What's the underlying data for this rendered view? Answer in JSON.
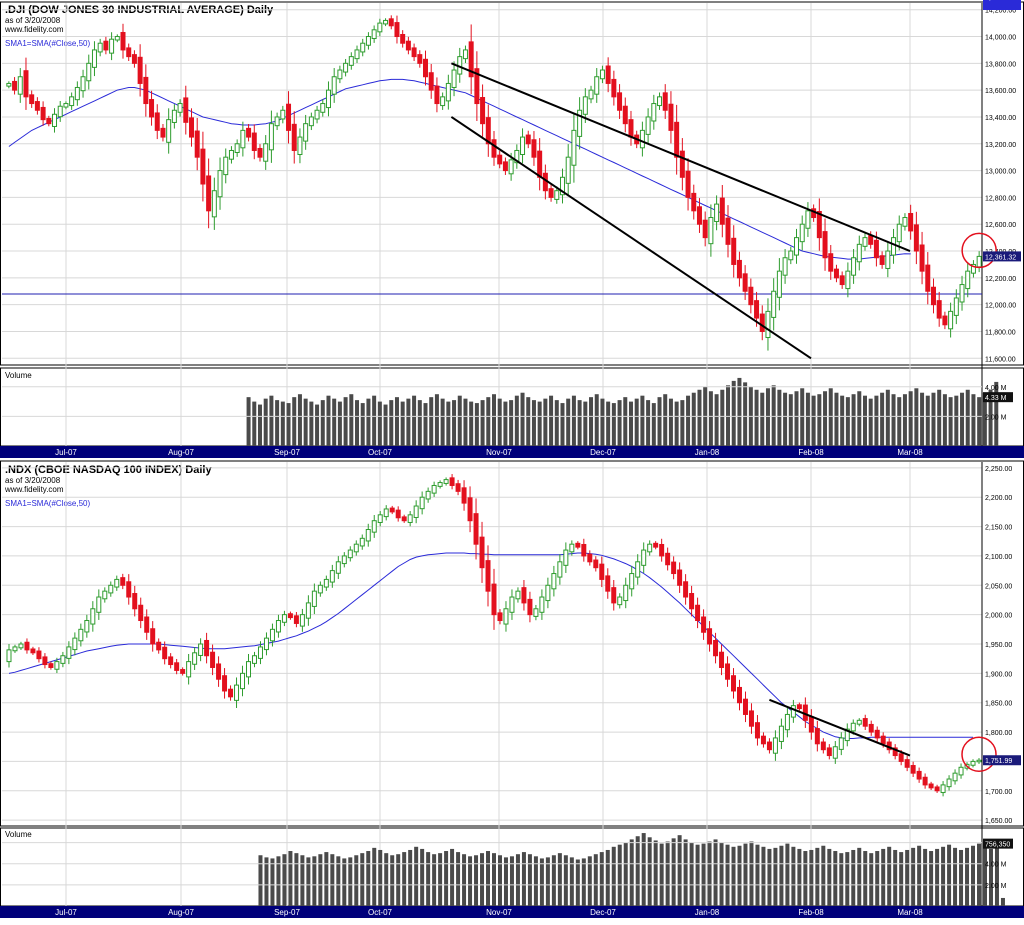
{
  "colors": {
    "up": "#2e9c2e",
    "down": "#e3101e",
    "sma": "#2a2ad8",
    "volume": "#4a4a4a",
    "axis_band": "#00007a",
    "grid": "#d8d8d8",
    "trendline": "#000000",
    "circle": "#e3101e",
    "hline": "#1f1fb0"
  },
  "x_axis_labels": [
    "Jul-07",
    "Aug-07",
    "Sep-07",
    "Oct-07",
    "Nov-07",
    "Dec-07",
    "Jan-08",
    "Feb-08",
    "Mar-08"
  ],
  "chart_data": [
    {
      "type": "candlestick",
      "title": ".DJI (DOW JONES 30 INDUSTRIAL AVERAGE) Daily",
      "subtitle_date": "as of 3/20/2008",
      "source": "www.fidelity.com",
      "legend": "SMA1=SMA(#Close,50)",
      "volume_label": "Volume",
      "y_ticks": [
        "14,200.00",
        "14,000.00",
        "13,800.00",
        "13,600.00",
        "13,400.00",
        "13,200.00",
        "13,000.00",
        "12,800.00",
        "12,600.00",
        "12,400.00",
        "12,200.00",
        "12,000.00",
        "11,800.00",
        "11,600.00"
      ],
      "ylim": [
        11550,
        14250
      ],
      "last_price_label": "12,361.32",
      "sma_label": "12,379.04",
      "volume_ticks": [
        "4.00 M",
        "2.00 M"
      ],
      "volume_last_label": "4.33 M",
      "horizontal_line": 12080,
      "trendlines": [
        {
          "from": [
            "Oct-07 end",
            13800
          ],
          "to": [
            "Mar-08 end",
            12400
          ]
        },
        {
          "from": [
            "Oct-07 end",
            13400
          ],
          "to": [
            "Feb-08 start",
            11600
          ]
        }
      ],
      "closes": [
        13650,
        13600,
        13700,
        13550,
        13500,
        13450,
        13380,
        13350,
        13420,
        13480,
        13500,
        13550,
        13620,
        13700,
        13800,
        13900,
        13950,
        13900,
        13980,
        14000,
        13900,
        13850,
        13800,
        13650,
        13500,
        13400,
        13300,
        13250,
        13380,
        13450,
        13500,
        13360,
        13250,
        13100,
        12900,
        12700,
        12850,
        13000,
        13100,
        13150,
        13200,
        13300,
        13250,
        13150,
        13100,
        13200,
        13350,
        13400,
        13450,
        13300,
        13150,
        13250,
        13350,
        13400,
        13450,
        13500,
        13600,
        13700,
        13750,
        13800,
        13850,
        13900,
        13950,
        14000,
        14050,
        14100,
        14120,
        14080,
        14000,
        13950,
        13900,
        13850,
        13800,
        13700,
        13600,
        13500,
        13550,
        13650,
        13750,
        13850,
        13900,
        13700,
        13500,
        13350,
        13200,
        13100,
        13050,
        13000,
        13080,
        13150,
        13250,
        13200,
        13100,
        12950,
        12850,
        12800,
        12850,
        12950,
        13100,
        13300,
        13450,
        13550,
        13600,
        13700,
        13750,
        13650,
        13550,
        13450,
        13350,
        13250,
        13200,
        13300,
        13400,
        13500,
        13550,
        13450,
        13300,
        13100,
        12950,
        12800,
        12700,
        12600,
        12500,
        12650,
        12750,
        12600,
        12450,
        12300,
        12200,
        12100,
        12000,
        11900,
        11800,
        11950,
        12100,
        12250,
        12350,
        12400,
        12500,
        12600,
        12700,
        12650,
        12500,
        12350,
        12250,
        12200,
        12150,
        12250,
        12350,
        12450,
        12500,
        12450,
        12350,
        12300,
        12400,
        12500,
        12600,
        12650,
        12550,
        12400,
        12250,
        12100,
        12000,
        11900,
        11850,
        11950,
        12050,
        12150,
        12250,
        12300,
        12360
      ],
      "volumes": [
        3.2,
        3.5,
        3.0,
        2.8,
        3.1,
        3.3,
        2.9,
        3.0,
        3.4,
        3.2,
        2.7,
        3.1,
        3.3,
        3.5,
        3.0,
        3.2,
        3.4,
        3.1,
        3.0,
        2.9,
        3.2,
        3.3,
        3.6,
        3.8,
        3.5,
        3.2,
        3.9,
        4.2,
        3.7,
        3.4,
        3.1,
        2.9,
        3.3,
        3.5,
        3.2,
        3.0,
        3.1,
        3.4,
        3.2,
        3.0,
        2.9,
        3.1,
        3.3,
        3.0,
        2.8,
        3.2,
        3.4,
        3.1,
        3.0,
        2.9,
        3.3,
        3.5,
        3.2,
        3.0,
        2.8,
        3.1,
        3.4,
        3.2,
        3.0,
        3.3,
        3.5,
        3.1,
        2.9,
        3.2,
        3.4,
        3.0,
        2.8,
        3.1,
        3.3,
        3.0,
        3.2,
        3.4,
        3.1,
        2.9,
        3.3,
        3.5,
        3.2,
        3.0,
        3.1,
        3.4,
        3.2,
        3.0,
        2.9,
        3.1,
        3.3,
        3.5,
        3.2,
        3.0,
        3.1,
        3.4,
        3.6,
        3.3,
        3.1,
        3.0,
        3.2,
        3.4,
        3.1,
        2.9,
        3.2,
        3.4,
        3.1,
        3.0,
        3.3,
        3.5,
        3.2,
        3.0,
        2.9,
        3.1,
        3.3,
        3.0,
        3.2,
        3.4,
        3.1,
        2.9,
        3.3,
        3.5,
        3.2,
        3.0,
        3.1,
        3.4,
        3.6,
        3.8,
        4.0,
        3.7,
        3.5,
        3.8,
        4.1,
        4.4,
        4.6,
        4.3,
        4.0,
        3.8,
        3.6,
        3.9,
        4.1,
        3.8,
        3.6,
        3.5,
        3.7,
        3.9,
        3.6,
        3.4,
        3.5,
        3.7,
        3.9,
        3.6,
        3.4,
        3.3,
        3.5,
        3.7,
        3.4,
        3.2,
        3.4,
        3.6,
        3.8,
        3.5,
        3.3,
        3.5,
        3.7,
        3.9,
        3.6,
        3.4,
        3.6,
        3.8,
        3.5,
        3.3,
        3.4,
        3.6,
        3.8,
        3.5,
        3.3,
        3.6,
        3.8,
        4.33
      ],
      "sma_values": [
        13180,
        13210,
        13240,
        13270,
        13300,
        13320,
        13340,
        13360,
        13380,
        13400,
        13420,
        13440,
        13460,
        13480,
        13500,
        13520,
        13540,
        13560,
        13580,
        13600,
        13610,
        13620,
        13620,
        13610,
        13600,
        13580,
        13560,
        13540,
        13520,
        13500,
        13480,
        13460,
        13440,
        13420,
        13400,
        13390,
        13380,
        13370,
        13360,
        13350,
        13345,
        13340,
        13340,
        13340,
        13345,
        13350,
        13360,
        13370,
        13390,
        13410,
        13430,
        13450,
        13470,
        13490,
        13510,
        13530,
        13550,
        13570,
        13590,
        13610,
        13620,
        13630,
        13640,
        13650,
        13660,
        13670,
        13675,
        13680,
        13680,
        13680,
        13675,
        13670,
        13660,
        13650,
        13640,
        13630,
        13620,
        13610,
        13600,
        13590,
        13580,
        13560,
        13540,
        13520,
        13500,
        13480,
        13460,
        13440,
        13420,
        13400,
        13380,
        13360,
        13340,
        13320,
        13300,
        13280,
        13260,
        13240,
        13220,
        13200,
        13180,
        13160,
        13140,
        13120,
        13100,
        13080,
        13060,
        13040,
        13020,
        13000,
        12980,
        12960,
        12940,
        12920,
        12900,
        12880,
        12860,
        12840,
        12820,
        12800,
        12780,
        12760,
        12740,
        12720,
        12700,
        12680,
        12660,
        12640,
        12620,
        12600,
        12580,
        12560,
        12540,
        12520,
        12500,
        12480,
        12460,
        12440,
        12420,
        12400,
        12390,
        12380,
        12370,
        12360,
        12355,
        12350,
        12345,
        12340,
        12340,
        12340,
        12345,
        12350,
        12355,
        12360,
        12365,
        12370,
        12375,
        12380,
        12379
      ]
    },
    {
      "type": "candlestick",
      "title": ".NDX (CBOE NASDAQ 100 INDEX) Daily",
      "subtitle_date": "as of 3/20/2008",
      "source": "www.fidelity.com",
      "legend": "SMA1=SMA(#Close,50)",
      "volume_label": "Volume",
      "y_ticks": [
        "2,250.00",
        "2,200.00",
        "2,150.00",
        "2,100.00",
        "2,050.00",
        "2,000.00",
        "1,950.00",
        "1,900.00",
        "1,850.00",
        "1,800.00",
        "1,750.00",
        "1,700.00",
        "1,650.00"
      ],
      "ylim": [
        1640,
        2260
      ],
      "last_price_label": "1,751.99",
      "sma_label": "1,791.19",
      "volume_ticks": [
        "6.00 M",
        "4.00 M",
        "2.00 M"
      ],
      "volume_last_label": "756,350",
      "trendlines": [
        {
          "from": [
            "Jan-08 end",
            1855
          ],
          "to": [
            "Mar-08 end",
            1760
          ]
        }
      ],
      "closes": [
        1940,
        1945,
        1950,
        1940,
        1935,
        1925,
        1915,
        1910,
        1920,
        1930,
        1945,
        1960,
        1975,
        1990,
        2010,
        2030,
        2040,
        2050,
        2060,
        2050,
        2030,
        2010,
        1990,
        1970,
        1950,
        1940,
        1925,
        1915,
        1905,
        1900,
        1920,
        1935,
        1950,
        1930,
        1910,
        1890,
        1870,
        1860,
        1880,
        1900,
        1920,
        1930,
        1945,
        1960,
        1975,
        1990,
        2000,
        1995,
        1985,
        2000,
        2020,
        2040,
        2050,
        2060,
        2075,
        2090,
        2100,
        2110,
        2120,
        2130,
        2145,
        2160,
        2170,
        2180,
        2175,
        2165,
        2160,
        2170,
        2185,
        2200,
        2210,
        2220,
        2225,
        2230,
        2220,
        2210,
        2190,
        2160,
        2120,
        2080,
        2040,
        2000,
        1990,
        2010,
        2030,
        2040,
        2020,
        2000,
        2010,
        2030,
        2050,
        2070,
        2090,
        2110,
        2120,
        2115,
        2100,
        2090,
        2080,
        2060,
        2040,
        2020,
        2030,
        2050,
        2070,
        2090,
        2110,
        2120,
        2115,
        2100,
        2085,
        2070,
        2050,
        2030,
        2010,
        1990,
        1970,
        1950,
        1930,
        1910,
        1890,
        1870,
        1850,
        1830,
        1810,
        1790,
        1780,
        1770,
        1790,
        1810,
        1830,
        1845,
        1840,
        1820,
        1800,
        1780,
        1770,
        1760,
        1775,
        1790,
        1805,
        1815,
        1820,
        1810,
        1800,
        1790,
        1780,
        1770,
        1760,
        1750,
        1740,
        1730,
        1720,
        1710,
        1705,
        1700,
        1710,
        1720,
        1730,
        1740,
        1745,
        1750,
        1752
      ],
      "volumes": [
        4.5,
        4.8,
        4.6,
        4.4,
        4.7,
        5.0,
        4.8,
        4.5,
        4.6,
        4.9,
        5.1,
        4.8,
        4.6,
        4.4,
        4.5,
        4.7,
        4.9,
        5.2,
        5.0,
        4.7,
        4.6,
        4.8,
        5.0,
        4.9,
        4.7,
        4.5,
        4.6,
        4.8,
        5.1,
        4.9,
        4.7,
        4.5,
        4.6,
        4.8,
        5.0,
        5.3,
        5.1,
        4.8,
        4.6,
        4.7,
        4.9,
        5.1,
        4.8,
        4.6,
        4.5,
        4.7,
        4.9,
        5.2,
        5.0,
        4.8,
        4.6,
        4.7,
        4.9,
        5.1,
        4.9,
        4.7,
        4.5,
        4.6,
        4.8,
        5.0,
        5.2,
        5.5,
        5.3,
        5.0,
        4.8,
        4.9,
        5.1,
        5.3,
        5.6,
        5.4,
        5.1,
        4.9,
        5.0,
        5.2,
        5.4,
        5.1,
        4.9,
        4.7,
        4.8,
        5.0,
        5.2,
        5.0,
        4.8,
        4.6,
        4.7,
        4.9,
        5.1,
        4.9,
        4.7,
        4.5,
        4.6,
        4.8,
        5.0,
        4.8,
        4.6,
        4.4,
        4.5,
        4.7,
        4.9,
        5.1,
        5.3,
        5.6,
        5.8,
        6.0,
        6.3,
        6.6,
        6.9,
        6.5,
        6.2,
        5.9,
        6.1,
        6.4,
        6.7,
        6.3,
        6.0,
        5.8,
        5.9,
        6.1,
        6.3,
        6.0,
        5.8,
        5.6,
        5.7,
        5.9,
        6.1,
        5.8,
        5.6,
        5.4,
        5.5,
        5.7,
        5.9,
        5.6,
        5.4,
        5.2,
        5.3,
        5.5,
        5.7,
        5.4,
        5.2,
        5.0,
        5.1,
        5.3,
        5.5,
        5.2,
        5.0,
        5.2,
        5.4,
        5.6,
        5.3,
        5.1,
        5.3,
        5.5,
        5.7,
        5.4,
        5.2,
        5.4,
        5.6,
        5.8,
        5.5,
        5.3,
        5.5,
        5.7,
        5.9,
        5.6,
        5.4,
        5.5,
        0.76
      ],
      "sma_values": [
        1900,
        1902,
        1905,
        1908,
        1911,
        1914,
        1917,
        1920,
        1923,
        1926,
        1929,
        1932,
        1935,
        1938,
        1940,
        1942,
        1944,
        1946,
        1948,
        1949,
        1950,
        1950,
        1950,
        1950,
        1950,
        1950,
        1949,
        1948,
        1947,
        1946,
        1945,
        1944,
        1943,
        1942,
        1942,
        1942,
        1942,
        1943,
        1944,
        1945,
        1946,
        1947,
        1949,
        1951,
        1953,
        1955,
        1958,
        1961,
        1964,
        1968,
        1972,
        1977,
        1982,
        1988,
        1995,
        2002,
        2010,
        2018,
        2026,
        2034,
        2042,
        2050,
        2058,
        2066,
        2074,
        2082,
        2088,
        2094,
        2098,
        2100,
        2102,
        2103,
        2104,
        2105,
        2105,
        2105,
        2105,
        2104,
        2104,
        2103,
        2103,
        2102,
        2102,
        2102,
        2102,
        2102,
        2102,
        2102,
        2102,
        2102,
        2102,
        2102,
        2102,
        2103,
        2104,
        2105,
        2105,
        2104,
        2103,
        2101,
        2098,
        2095,
        2091,
        2087,
        2082,
        2076,
        2070,
        2063,
        2055,
        2047,
        2038,
        2029,
        2020,
        2010,
        2000,
        1990,
        1980,
        1970,
        1960,
        1950,
        1940,
        1930,
        1920,
        1910,
        1900,
        1890,
        1880,
        1870,
        1860,
        1850,
        1842,
        1834,
        1826,
        1818,
        1812,
        1806,
        1800,
        1796,
        1792,
        1790,
        1789,
        1789,
        1790,
        1790,
        1791,
        1791,
        1791,
        1791,
        1791,
        1791,
        1791,
        1791,
        1791,
        1791,
        1791,
        1791,
        1791,
        1791,
        1791,
        1791,
        1791,
        1791
      ]
    }
  ]
}
